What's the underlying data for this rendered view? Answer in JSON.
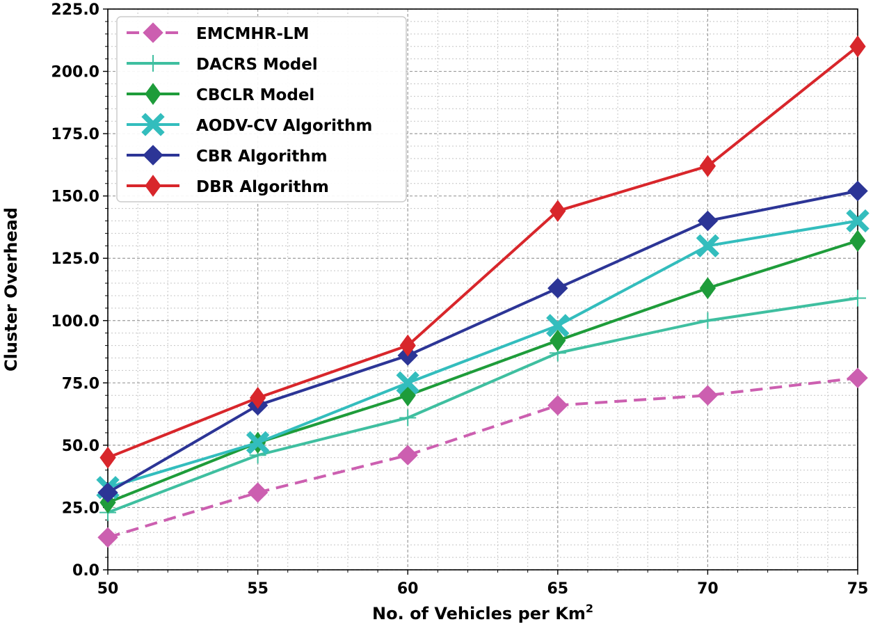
{
  "chart_data": {
    "type": "line",
    "title": "",
    "xlabel": "No. of Vehicles per Km",
    "xlabel_superscript": "2",
    "ylabel": "Cluster Overhead",
    "x": [
      50,
      55,
      60,
      65,
      70,
      75
    ],
    "xlim": [
      50,
      75
    ],
    "ylim": [
      0,
      225
    ],
    "x_ticks": [
      "50",
      "55",
      "60",
      "65",
      "70",
      "75"
    ],
    "y_ticks": [
      "0.0",
      "25.0",
      "50.0",
      "75.0",
      "100.0",
      "125.0",
      "150.0",
      "175.0",
      "200.0",
      "225.0"
    ],
    "y_tick_values": [
      0,
      25,
      50,
      75,
      100,
      125,
      150,
      175,
      200,
      225
    ],
    "grid": "major and minor, dotted",
    "legend_position": "top-left",
    "series": [
      {
        "name": "EMCMHR-LM",
        "values": [
          13,
          31,
          46,
          66,
          70,
          77
        ],
        "color": "#cc5fb0",
        "dash": "dashed",
        "marker": "diamond"
      },
      {
        "name": "DACRS Model",
        "values": [
          23,
          46,
          61,
          87,
          100,
          109
        ],
        "color": "#3fbfa0",
        "dash": "solid",
        "marker": "plus"
      },
      {
        "name": "CBCLR Model",
        "values": [
          27,
          51,
          70,
          92,
          113,
          132
        ],
        "color": "#1e9c3a",
        "dash": "solid",
        "marker": "thin-diamond"
      },
      {
        "name": "AODV-CV Algorithm",
        "values": [
          33,
          51,
          75,
          98,
          130,
          140
        ],
        "color": "#33bdbd",
        "dash": "solid",
        "marker": "x-filled"
      },
      {
        "name": "CBR Algorithm",
        "values": [
          31,
          66,
          86,
          113,
          140,
          152
        ],
        "color": "#2c3596",
        "dash": "solid",
        "marker": "diamond"
      },
      {
        "name": "DBR Algorithm",
        "values": [
          45,
          69,
          90,
          144,
          162,
          210
        ],
        "color": "#d8262b",
        "dash": "solid",
        "marker": "thin-diamond"
      }
    ]
  }
}
